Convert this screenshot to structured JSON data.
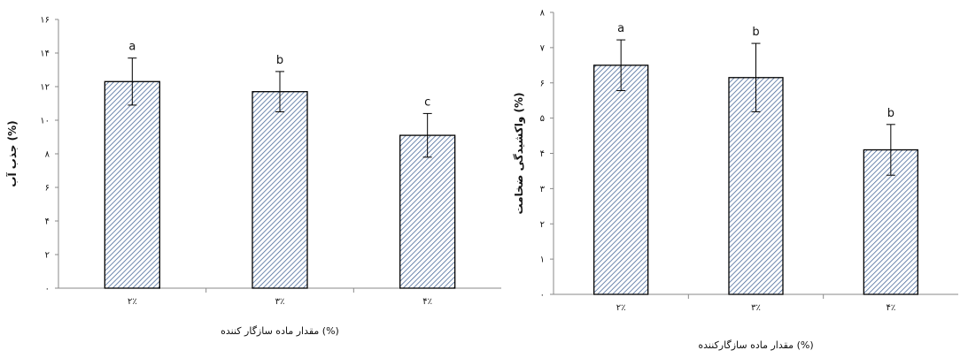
{
  "chart_data": [
    {
      "type": "bar",
      "title": "",
      "xlabel": "مقدار ماده سازگار کننده (%)",
      "ylabel": "جذب آب (%)",
      "categories": [
        "۲٪",
        "۳٪",
        "۴٪"
      ],
      "values": [
        12.3,
        11.7,
        9.1
      ],
      "error": [
        1.4,
        1.2,
        1.3
      ],
      "letters": [
        "a",
        "b",
        "c"
      ],
      "ylim": [
        0,
        16
      ],
      "yticks": [
        0,
        2,
        4,
        6,
        8,
        10,
        12,
        14,
        16
      ],
      "ytick_labels": [
        "۰",
        "۲",
        "۴",
        "۶",
        "۸",
        "۱۰",
        "۱۲",
        "۱۴",
        "۱۶"
      ],
      "grid": false,
      "legend": "none",
      "bar_color": "#4a6a9a",
      "bar_pattern": "diagonal-hatch"
    },
    {
      "type": "bar",
      "title": "",
      "xlabel": "مقدار ماده سازگارکننده (%)",
      "ylabel": "واکشیدگی ضخامت (%)",
      "categories": [
        "۲٪",
        "۳٪",
        "۴٪"
      ],
      "values": [
        6.5,
        6.15,
        4.1
      ],
      "error": [
        0.72,
        0.97,
        0.72
      ],
      "letters": [
        "a",
        "b",
        "b"
      ],
      "ylim": [
        0,
        8
      ],
      "yticks": [
        0,
        1,
        2,
        3,
        4,
        5,
        6,
        7,
        8
      ],
      "ytick_labels": [
        "۰",
        "۱",
        "۲",
        "۳",
        "۴",
        "۵",
        "۶",
        "۷",
        "۸"
      ],
      "grid": false,
      "legend": "none",
      "bar_color": "#4a6a9a",
      "bar_pattern": "diagonal-hatch"
    }
  ]
}
